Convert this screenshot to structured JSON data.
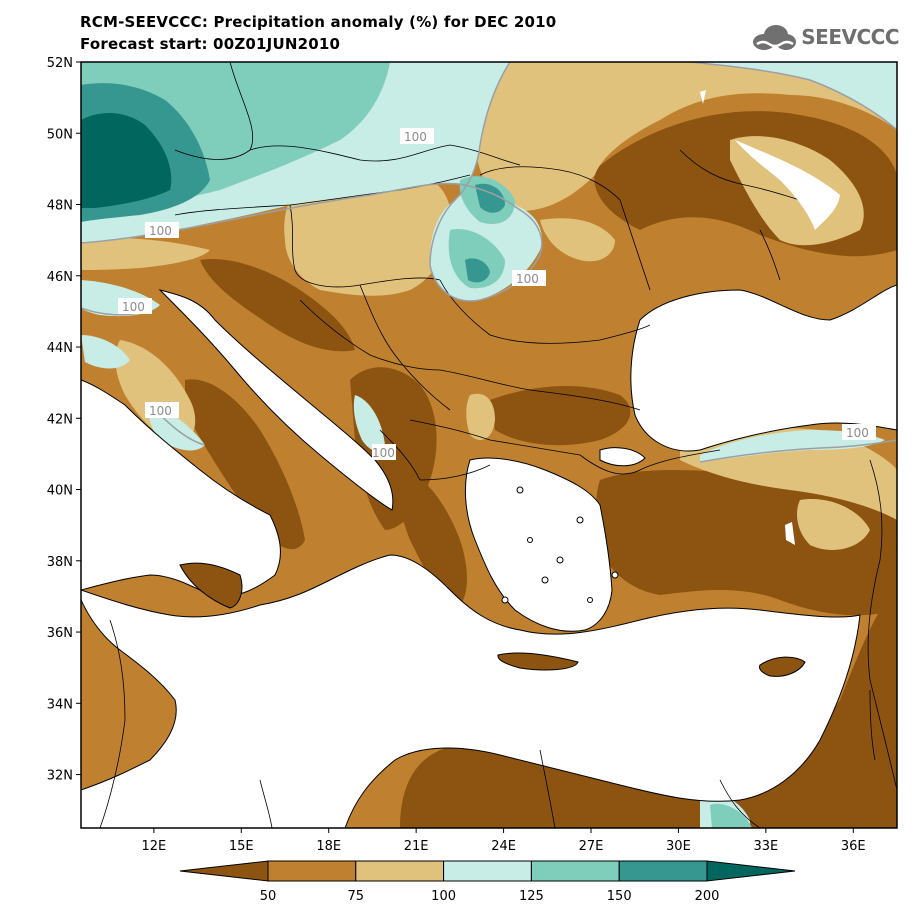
{
  "title": {
    "line1": "RCM-SEEVCCC: Precipitation anomaly (%) for DEC 2010",
    "line2": "Forecast start: 00Z01JUN2010"
  },
  "logo": {
    "text": "SEEVCCC",
    "icon": "cloud-icon"
  },
  "map": {
    "lon_range": [
      9.5,
      37.5
    ],
    "lat_range": [
      30.5,
      52
    ],
    "lat_ticks": [
      "52N",
      "50N",
      "48N",
      "46N",
      "44N",
      "42N",
      "40N",
      "38N",
      "36N",
      "34N",
      "32N"
    ],
    "lon_ticks": [
      "12E",
      "15E",
      "18E",
      "21E",
      "24E",
      "27E",
      "30E",
      "33E",
      "36E"
    ],
    "contour_labels": [
      "100",
      "100",
      "100",
      "100",
      "100",
      "100",
      "100"
    ]
  },
  "colorbar": {
    "ticks": [
      "50",
      "75",
      "100",
      "125",
      "150",
      "200"
    ],
    "colors": [
      "#8c5410",
      "#bf8030",
      "#e1c27d",
      "#c8ece6",
      "#7fcdbb",
      "#35978f",
      "#01665e"
    ]
  }
}
